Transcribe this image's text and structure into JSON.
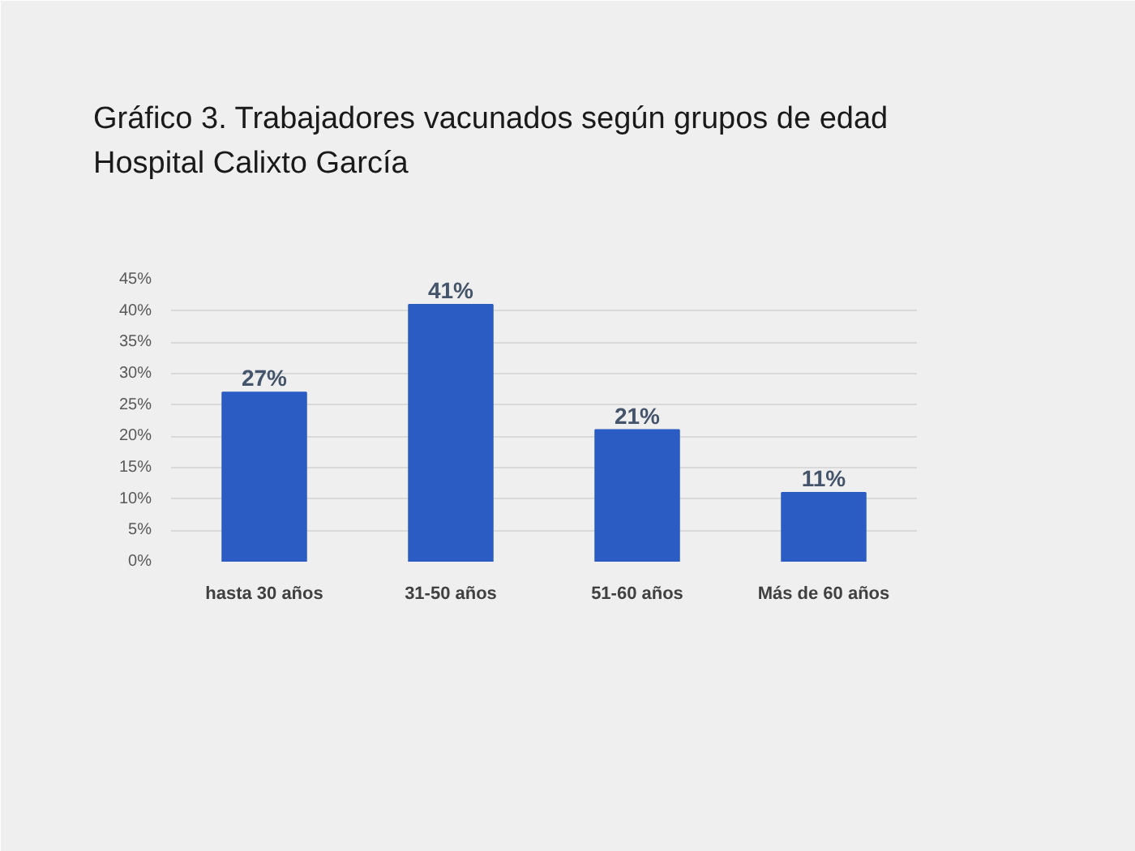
{
  "chart_data": {
    "type": "bar",
    "title": "Gráfico 3. Trabajadores vacunados según grupos de edad",
    "subtitle": "Hospital Calixto García",
    "categories": [
      "hasta 30 años",
      "31-50 años",
      "51-60 años",
      "Más de 60 años"
    ],
    "values": [
      27,
      41,
      21,
      11
    ],
    "value_labels": [
      "27%",
      "41%",
      "21%",
      "11%"
    ],
    "color": "#2a5cc4",
    "ylim": [
      0,
      45
    ],
    "yticks": [
      {
        "value": 0,
        "label": "0%"
      },
      {
        "value": 5,
        "label": "5%"
      },
      {
        "value": 10,
        "label": "10%"
      },
      {
        "value": 15,
        "label": "15%"
      },
      {
        "value": 20,
        "label": "20%"
      },
      {
        "value": 25,
        "label": "25%"
      },
      {
        "value": 30,
        "label": "30%"
      },
      {
        "value": 35,
        "label": "35%"
      },
      {
        "value": 40,
        "label": "40%"
      },
      {
        "value": 45,
        "label": "45%"
      }
    ],
    "grid": "y"
  }
}
